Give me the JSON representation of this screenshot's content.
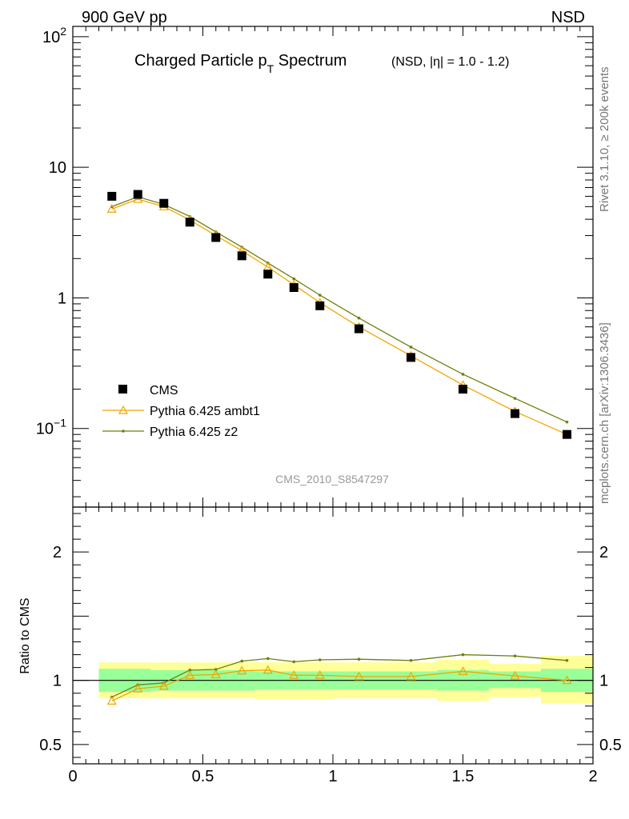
{
  "header": {
    "left": "900 GeV pp",
    "right": "NSD"
  },
  "side_labels": {
    "rivet": "Rivet 3.1.10, ≥ 200k events",
    "mcplots": "mcplots.cern.ch [arXiv:1306.3436]"
  },
  "watermark": "CMS_2010_S8547297",
  "colors": {
    "cms": "#000000",
    "ambt1": "#f2a400",
    "z2": "#6f7f0a",
    "band_inner": "#99ff99",
    "band_outer": "#ffff99"
  },
  "chart_data": [
    {
      "type": "line",
      "title": "Charged Particle p",
      "title_sub": "T",
      "title_rest": " Spectrum",
      "subtitle": "(NSD, |η| = 1.0 - 1.2)",
      "xlabel": "",
      "ylabel": "",
      "xlim": [
        0,
        2
      ],
      "ylim": [
        0.025,
        120
      ],
      "yscale": "log",
      "ytick_labels": [
        {
          "value": 100,
          "base": "10",
          "exp": "2"
        },
        {
          "value": 10,
          "base": "10",
          "exp": ""
        },
        {
          "value": 1,
          "base": "1",
          "exp": ""
        },
        {
          "value": 0.1,
          "base": "10",
          "exp": "−1"
        }
      ],
      "legend": [
        "CMS",
        "Pythia 6.425 ambt1",
        "Pythia 6.425 z2"
      ],
      "legend_position": "bottom-left",
      "series": [
        {
          "name": "CMS",
          "marker": "square",
          "x": [
            0.15,
            0.25,
            0.35,
            0.45,
            0.55,
            0.65,
            0.75,
            0.85,
            0.95,
            1.1,
            1.3,
            1.5,
            1.7,
            1.9
          ],
          "y": [
            6.0,
            6.2,
            5.3,
            3.8,
            2.9,
            2.1,
            1.52,
            1.2,
            0.87,
            0.58,
            0.35,
            0.2,
            0.13,
            0.09
          ]
        },
        {
          "name": "Pythia 6.425 ambt1",
          "marker": "triangle",
          "x": [
            0.15,
            0.25,
            0.35,
            0.45,
            0.55,
            0.65,
            0.75,
            0.85,
            0.95,
            1.1,
            1.3,
            1.5,
            1.7,
            1.9
          ],
          "y": [
            4.8,
            5.7,
            5.0,
            3.95,
            3.0,
            2.3,
            1.72,
            1.26,
            0.92,
            0.6,
            0.36,
            0.215,
            0.135,
            0.09
          ]
        },
        {
          "name": "Pythia 6.425 z2",
          "marker": "dot",
          "x": [
            0.15,
            0.25,
            0.35,
            0.45,
            0.55,
            0.65,
            0.75,
            0.85,
            0.95,
            1.1,
            1.3,
            1.5,
            1.7,
            1.9
          ],
          "y": [
            5.0,
            5.95,
            5.2,
            4.2,
            3.2,
            2.45,
            1.85,
            1.4,
            1.05,
            0.7,
            0.42,
            0.26,
            0.17,
            0.112
          ]
        }
      ]
    },
    {
      "type": "line",
      "title": "",
      "xlabel": "",
      "ylabel": "Ratio to CMS",
      "xlim": [
        0,
        2
      ],
      "ylim": [
        0.35,
        2.35
      ],
      "yticks": [
        0.5,
        1,
        2
      ],
      "ytick_labels": [
        "0.5",
        "1",
        "2"
      ],
      "xticks": [
        0,
        0.5,
        1,
        1.5,
        2
      ],
      "xtick_labels": [
        "0",
        "0.5",
        "1",
        "1.5",
        "2"
      ],
      "reference_line": 1,
      "uncertainty_bands": [
        {
          "x0": 0.1,
          "x1": 0.2,
          "inner": [
            0.91,
            1.09
          ],
          "outer": [
            0.86,
            1.14
          ]
        },
        {
          "x0": 0.2,
          "x1": 0.3,
          "inner": [
            0.91,
            1.09
          ],
          "outer": [
            0.86,
            1.14
          ]
        },
        {
          "x0": 0.3,
          "x1": 0.4,
          "inner": [
            0.92,
            1.08
          ],
          "outer": [
            0.86,
            1.14
          ]
        },
        {
          "x0": 0.4,
          "x1": 0.5,
          "inner": [
            0.92,
            1.08
          ],
          "outer": [
            0.86,
            1.14
          ]
        },
        {
          "x0": 0.5,
          "x1": 0.6,
          "inner": [
            0.92,
            1.08
          ],
          "outer": [
            0.86,
            1.14
          ]
        },
        {
          "x0": 0.6,
          "x1": 0.7,
          "inner": [
            0.92,
            1.08
          ],
          "outer": [
            0.86,
            1.14
          ]
        },
        {
          "x0": 0.7,
          "x1": 0.8,
          "inner": [
            0.93,
            1.07
          ],
          "outer": [
            0.85,
            1.14
          ]
        },
        {
          "x0": 0.8,
          "x1": 0.9,
          "inner": [
            0.93,
            1.07
          ],
          "outer": [
            0.85,
            1.14
          ]
        },
        {
          "x0": 0.9,
          "x1": 1.0,
          "inner": [
            0.93,
            1.07
          ],
          "outer": [
            0.85,
            1.14
          ]
        },
        {
          "x0": 1.0,
          "x1": 1.2,
          "inner": [
            0.93,
            1.07
          ],
          "outer": [
            0.86,
            1.14
          ]
        },
        {
          "x0": 1.2,
          "x1": 1.4,
          "inner": [
            0.93,
            1.07
          ],
          "outer": [
            0.86,
            1.14
          ]
        },
        {
          "x0": 1.4,
          "x1": 1.6,
          "inner": [
            0.92,
            1.08
          ],
          "outer": [
            0.84,
            1.16
          ]
        },
        {
          "x0": 1.6,
          "x1": 1.8,
          "inner": [
            0.94,
            1.07
          ],
          "outer": [
            0.87,
            1.13
          ]
        },
        {
          "x0": 1.8,
          "x1": 2.0,
          "inner": [
            0.91,
            1.09
          ],
          "outer": [
            0.82,
            1.19
          ]
        }
      ],
      "series": [
        {
          "name": "Pythia 6.425 ambt1",
          "marker": "triangle",
          "x": [
            0.15,
            0.25,
            0.35,
            0.45,
            0.55,
            0.65,
            0.75,
            0.85,
            0.95,
            1.1,
            1.3,
            1.5,
            1.7,
            1.9
          ],
          "y": [
            0.84,
            0.935,
            0.955,
            1.04,
            1.045,
            1.075,
            1.08,
            1.04,
            1.04,
            1.03,
            1.03,
            1.07,
            1.035,
            1.0
          ]
        },
        {
          "name": "Pythia 6.425 z2",
          "marker": "dot",
          "x": [
            0.15,
            0.25,
            0.35,
            0.45,
            0.55,
            0.65,
            0.75,
            0.85,
            0.95,
            1.1,
            1.3,
            1.5,
            1.7,
            1.9
          ],
          "y": [
            0.87,
            0.965,
            0.98,
            1.08,
            1.085,
            1.15,
            1.17,
            1.145,
            1.16,
            1.165,
            1.155,
            1.2,
            1.19,
            1.155
          ]
        }
      ]
    }
  ]
}
